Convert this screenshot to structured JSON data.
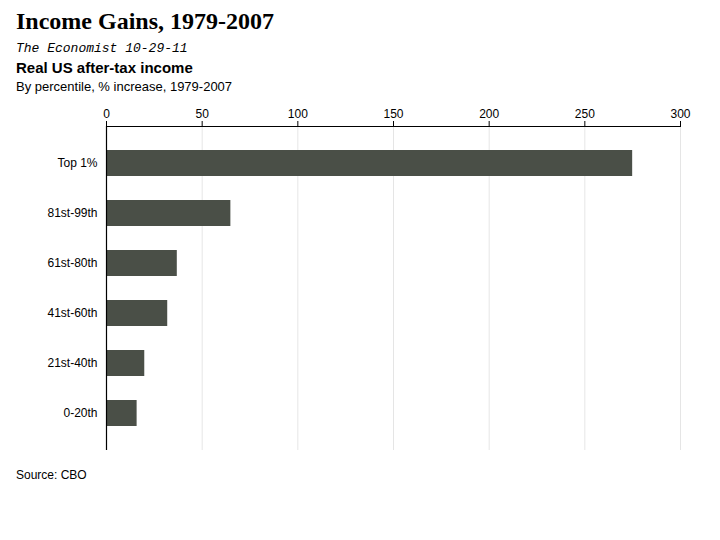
{
  "chart_data": {
    "type": "bar",
    "orientation": "horizontal",
    "title": "Income Gains, 1979-2007",
    "subtitle1": "The  Economist  10-29-11",
    "subtitle2": "Real US after-tax income",
    "subtitle3": "By percentile, % increase, 1979-2007",
    "source": "Source: CBO",
    "categories": [
      "Top 1%",
      "81st-99th",
      "61st-80th",
      "41st-60th",
      "21st-40th",
      "0-20th"
    ],
    "values": [
      275,
      65,
      37,
      32,
      20,
      16
    ],
    "color": "#4a4f47",
    "xlim": [
      0,
      300
    ],
    "xticks": [
      0,
      50,
      100,
      150,
      200,
      250,
      300
    ],
    "grid": true
  }
}
